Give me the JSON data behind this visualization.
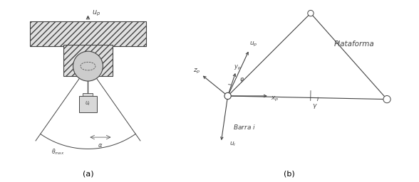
{
  "fig_width": 5.88,
  "fig_height": 2.56,
  "dpi": 100,
  "bg_color": "#ffffff",
  "line_color": "#444444",
  "caption_a": "(a)",
  "caption_b": "(b)"
}
